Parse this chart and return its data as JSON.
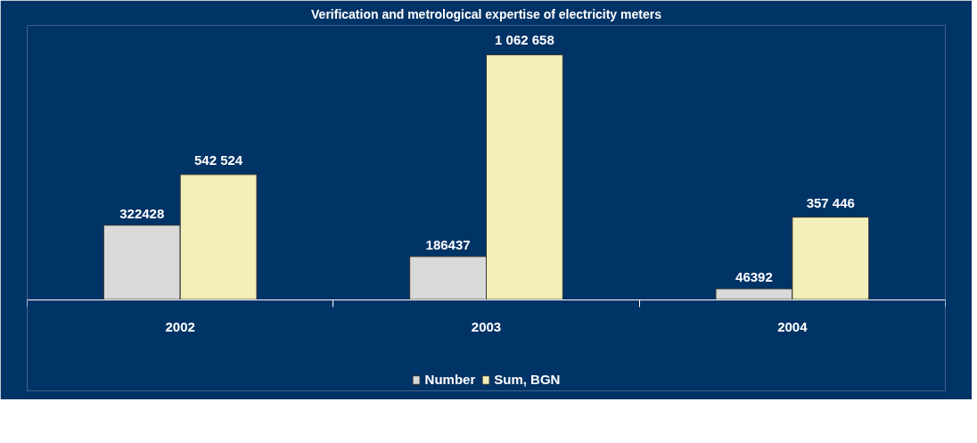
{
  "chart_data": {
    "type": "bar",
    "title": "Verification and metrological expertise of electricity meters",
    "categories": [
      "2002",
      "2003",
      "2004"
    ],
    "series": [
      {
        "name": "Number",
        "color": "#d9d9d9",
        "values": [
          322428,
          186437,
          46392
        ],
        "value_labels": [
          "322428",
          "186437",
          "46392"
        ]
      },
      {
        "name": "Sum, BGN",
        "color": "#f2efb8",
        "values": [
          542524,
          1062658,
          357446
        ],
        "value_labels": [
          "542 524",
          "1 062 658",
          "357 446"
        ]
      }
    ],
    "legend": "bottom",
    "grid": false,
    "tick_labels": "x"
  }
}
